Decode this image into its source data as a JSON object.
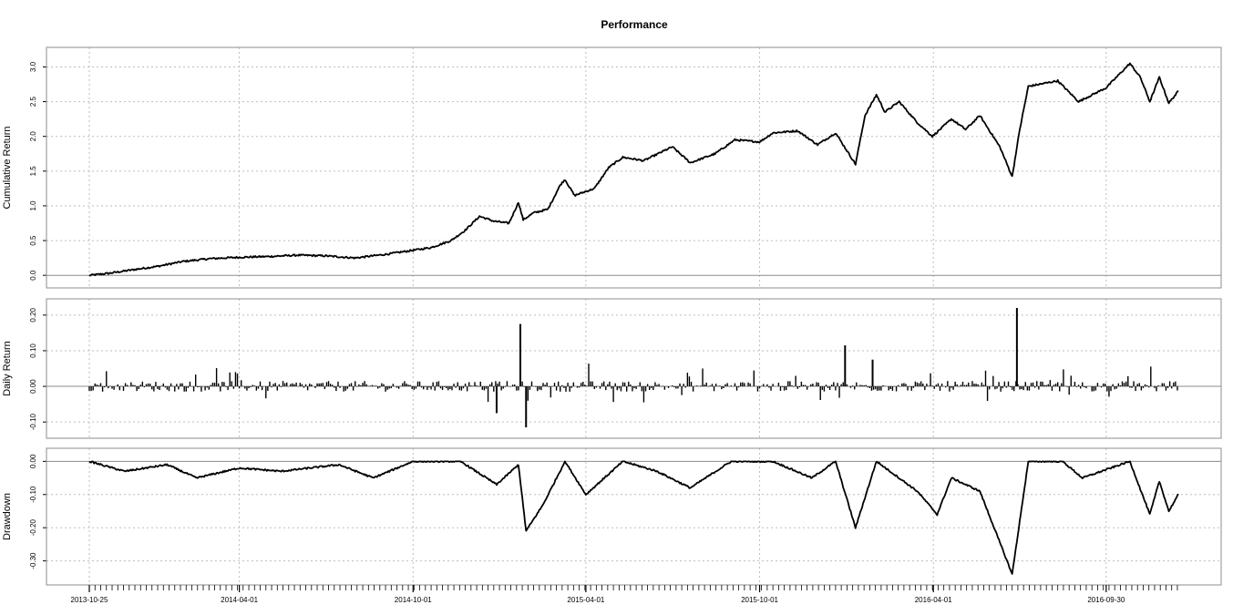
{
  "chart_data": {
    "type": "line",
    "title": "Performance",
    "colors": {
      "series": "#000000",
      "grid": "#bdbdbd",
      "frame": "#8c8c8c"
    },
    "grid": true,
    "x_labels": [
      "2013-10-25",
      "2014-04-01",
      "2014-10-01",
      "2015-04-01",
      "2015-10-01",
      "2016-04-01",
      "2016-09-30"
    ],
    "x_range": [
      "2013-10-25",
      "2016-12-15"
    ],
    "panels": [
      {
        "id": "cumulative",
        "type": "line",
        "ylabel": "Cumulative Return",
        "ylim": [
          -0.05,
          3.15
        ],
        "yticks": [
          0.0,
          0.5,
          1.0,
          1.5,
          2.0,
          2.5,
          3.0
        ],
        "ytick_labels": [
          "0.0",
          "0.5",
          "1.0",
          "1.5",
          "2.0",
          "2.5",
          "3.0"
        ],
        "points": [
          [
            "2013-10-25",
            0.0
          ],
          [
            "2013-11-15",
            0.03
          ],
          [
            "2013-12-10",
            0.08
          ],
          [
            "2014-01-05",
            0.13
          ],
          [
            "2014-02-01",
            0.2
          ],
          [
            "2014-03-01",
            0.24
          ],
          [
            "2014-04-01",
            0.26
          ],
          [
            "2014-05-01",
            0.27
          ],
          [
            "2014-06-01",
            0.29
          ],
          [
            "2014-07-01",
            0.28
          ],
          [
            "2014-08-01",
            0.25
          ],
          [
            "2014-09-01",
            0.3
          ],
          [
            "2014-10-01",
            0.36
          ],
          [
            "2014-10-20",
            0.4
          ],
          [
            "2014-11-10",
            0.5
          ],
          [
            "2014-11-25",
            0.65
          ],
          [
            "2014-12-10",
            0.85
          ],
          [
            "2014-12-25",
            0.78
          ],
          [
            "2015-01-10",
            0.75
          ],
          [
            "2015-01-20",
            1.05
          ],
          [
            "2015-01-25",
            0.8
          ],
          [
            "2015-02-05",
            0.9
          ],
          [
            "2015-02-20",
            0.95
          ],
          [
            "2015-03-05",
            1.3
          ],
          [
            "2015-03-10",
            1.38
          ],
          [
            "2015-03-20",
            1.15
          ],
          [
            "2015-04-10",
            1.25
          ],
          [
            "2015-04-25",
            1.55
          ],
          [
            "2015-05-10",
            1.7
          ],
          [
            "2015-06-01",
            1.65
          ],
          [
            "2015-07-01",
            1.85
          ],
          [
            "2015-07-20",
            1.62
          ],
          [
            "2015-08-15",
            1.75
          ],
          [
            "2015-09-05",
            1.95
          ],
          [
            "2015-10-01",
            1.92
          ],
          [
            "2015-10-15",
            2.05
          ],
          [
            "2015-11-10",
            2.08
          ],
          [
            "2015-12-01",
            1.88
          ],
          [
            "2015-12-20",
            2.05
          ],
          [
            "2016-01-10",
            1.6
          ],
          [
            "2016-01-20",
            2.3
          ],
          [
            "2016-02-01",
            2.6
          ],
          [
            "2016-02-10",
            2.35
          ],
          [
            "2016-02-25",
            2.5
          ],
          [
            "2016-03-15",
            2.2
          ],
          [
            "2016-03-31",
            2.0
          ],
          [
            "2016-04-20",
            2.25
          ],
          [
            "2016-05-05",
            2.1
          ],
          [
            "2016-05-20",
            2.3
          ],
          [
            "2016-06-10",
            1.85
          ],
          [
            "2016-06-23",
            1.42
          ],
          [
            "2016-07-01",
            2.1
          ],
          [
            "2016-07-10",
            2.72
          ],
          [
            "2016-08-10",
            2.8
          ],
          [
            "2016-09-01",
            2.5
          ],
          [
            "2016-09-30",
            2.7
          ],
          [
            "2016-10-25",
            3.05
          ],
          [
            "2016-11-05",
            2.85
          ],
          [
            "2016-11-15",
            2.5
          ],
          [
            "2016-11-25",
            2.85
          ],
          [
            "2016-12-05",
            2.48
          ],
          [
            "2016-12-15",
            2.65
          ]
        ]
      },
      {
        "id": "daily",
        "type": "bar",
        "ylabel": "Daily Return",
        "ylim": [
          -0.12,
          0.22
        ],
        "yticks": [
          -0.1,
          0.0,
          0.1,
          0.2
        ],
        "ytick_labels": [
          "-0.10",
          "0.00",
          "0.10",
          "0.20"
        ],
        "notable_bars": [
          [
            "2014-12-28",
            -0.075
          ],
          [
            "2015-01-22",
            0.175
          ],
          [
            "2015-01-28",
            -0.115
          ],
          [
            "2015-12-30",
            0.115
          ],
          [
            "2016-01-28",
            0.075
          ],
          [
            "2016-06-28",
            0.22
          ]
        ]
      },
      {
        "id": "drawdown",
        "type": "line",
        "ylabel": "Drawdown",
        "ylim": [
          -0.345,
          0.012
        ],
        "yticks": [
          0.0,
          -0.1,
          -0.2,
          -0.3
        ],
        "ytick_labels": [
          "0.00",
          "-0.10",
          "-0.20",
          "-0.30"
        ],
        "points": [
          [
            "2013-10-25",
            0.0
          ],
          [
            "2013-12-01",
            -0.03
          ],
          [
            "2014-01-15",
            -0.01
          ],
          [
            "2014-02-15",
            -0.05
          ],
          [
            "2014-04-01",
            -0.02
          ],
          [
            "2014-05-15",
            -0.03
          ],
          [
            "2014-07-15",
            -0.01
          ],
          [
            "2014-08-20",
            -0.05
          ],
          [
            "2014-10-01",
            0.0
          ],
          [
            "2014-11-20",
            0.0
          ],
          [
            "2014-12-28",
            -0.07
          ],
          [
            "2015-01-20",
            -0.01
          ],
          [
            "2015-01-28",
            -0.21
          ],
          [
            "2015-02-15",
            -0.13
          ],
          [
            "2015-03-10",
            0.0
          ],
          [
            "2015-04-01",
            -0.1
          ],
          [
            "2015-05-10",
            0.0
          ],
          [
            "2015-06-15",
            -0.03
          ],
          [
            "2015-07-20",
            -0.08
          ],
          [
            "2015-09-01",
            0.0
          ],
          [
            "2015-10-15",
            0.0
          ],
          [
            "2015-11-25",
            -0.05
          ],
          [
            "2015-12-20",
            0.0
          ],
          [
            "2016-01-10",
            -0.2
          ],
          [
            "2016-02-01",
            0.0
          ],
          [
            "2016-03-15",
            -0.09
          ],
          [
            "2016-04-05",
            -0.16
          ],
          [
            "2016-04-20",
            -0.05
          ],
          [
            "2016-05-20",
            -0.09
          ],
          [
            "2016-06-23",
            -0.34
          ],
          [
            "2016-07-10",
            0.0
          ],
          [
            "2016-08-15",
            0.0
          ],
          [
            "2016-09-05",
            -0.05
          ],
          [
            "2016-10-25",
            0.0
          ],
          [
            "2016-11-15",
            -0.16
          ],
          [
            "2016-11-25",
            -0.06
          ],
          [
            "2016-12-05",
            -0.15
          ],
          [
            "2016-12-15",
            -0.1
          ]
        ]
      }
    ]
  }
}
